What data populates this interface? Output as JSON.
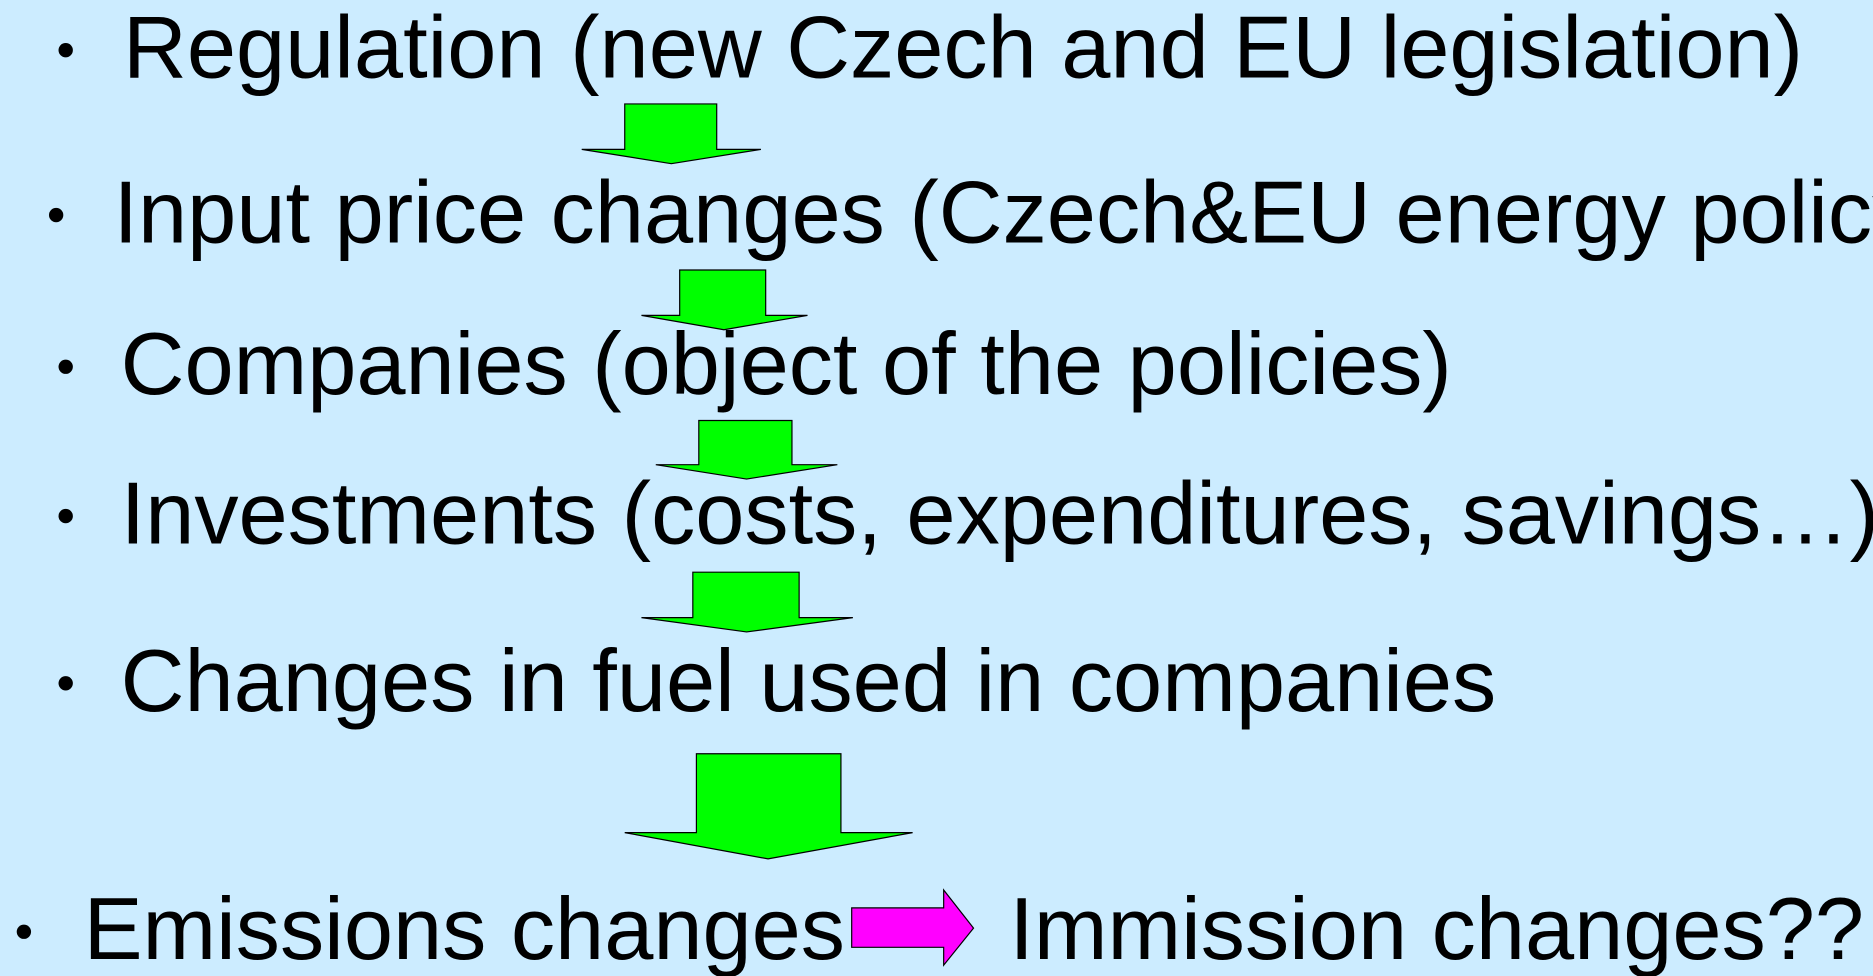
{
  "items": [
    {
      "text": "Regulation (new Czech and EU legislation)"
    },
    {
      "text": "Input price changes (Czech&EU energy policy)"
    },
    {
      "text": "Companies (object of the policies)"
    },
    {
      "text": "Investments (costs, expenditures, savings…)"
    },
    {
      "text": "Changes in fuel used in companies"
    },
    {
      "text": "Emissions changes",
      "result": "Immission changes??"
    }
  ]
}
